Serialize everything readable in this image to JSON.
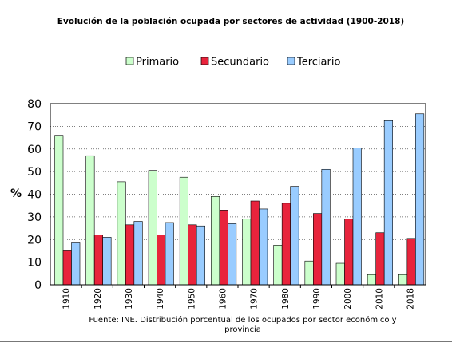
{
  "chart_data": {
    "type": "bar",
    "title": "Evolución de la población ocupada por sectores de actividad (1900-2018)",
    "ylabel": "%",
    "xlabel": "",
    "ylim": [
      0,
      80
    ],
    "yticks": [
      0,
      10,
      20,
      30,
      40,
      50,
      60,
      70,
      80
    ],
    "grid": "horizontal-dotted",
    "legend_position": "top",
    "categories": [
      "1910",
      "1920",
      "1930",
      "1940",
      "1950",
      "1960",
      "1970",
      "1980",
      "1990",
      "2000",
      "2010",
      "2018"
    ],
    "series": [
      {
        "name": "Primario",
        "color": "#ccffcc",
        "values": [
          66,
          57,
          45.5,
          50.5,
          47.5,
          39,
          29,
          17.5,
          10.5,
          9.5,
          4.5,
          4.5
        ]
      },
      {
        "name": "Secundario",
        "color": "#e8243c",
        "values": [
          15,
          22,
          26.5,
          22,
          26.5,
          33,
          37,
          36,
          31.5,
          29,
          23,
          20.5
        ]
      },
      {
        "name": "Terciario",
        "color": "#99ccff",
        "values": [
          18.5,
          21,
          28,
          27.5,
          26,
          27,
          33.5,
          43.5,
          51,
          60.5,
          72.5,
          75.5
        ]
      }
    ],
    "source": "Fuente: INE. Distribución porcentual de los ocupados por sector económico y provincia"
  }
}
